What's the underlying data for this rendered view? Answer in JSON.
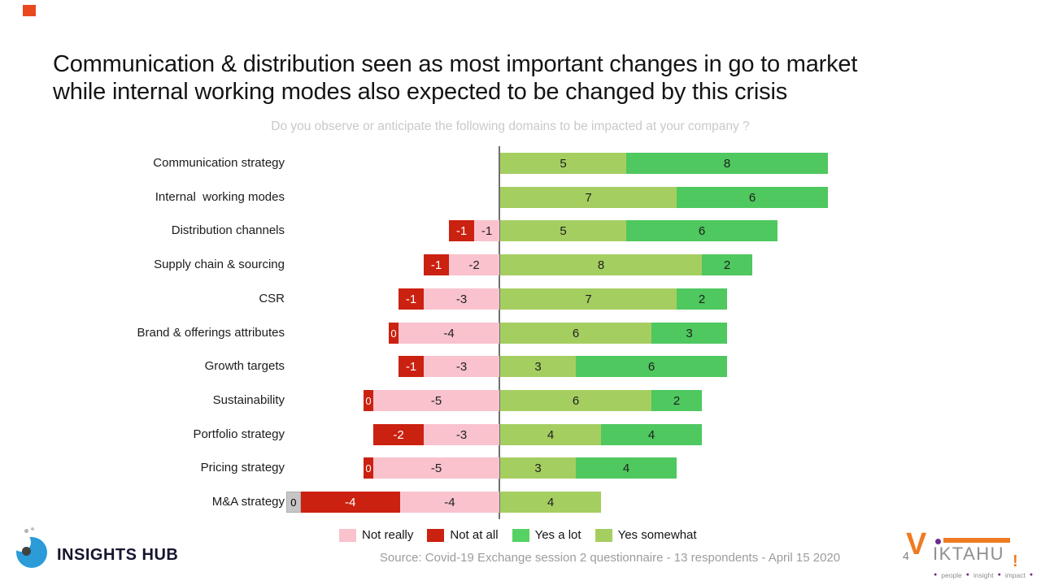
{
  "slide": {
    "title_line1": "Communication & distribution seen as most important changes in go to market",
    "title_line2": "while internal working modes also expected to be changed by this crisis",
    "page_number": "4",
    "top_left_marker_color": "#E8491F"
  },
  "chart_data": {
    "type": "bar",
    "orientation": "horizontal",
    "stacked": true,
    "diverging": true,
    "title": "Do you observe or anticipate the following domains to be impacted at your company ?",
    "source": "Source: Covid-19 Exchange session 2 questionnaire - 13 respondents - April 15 2020",
    "categories": [
      "Communication strategy",
      "Internal  working modes",
      "Distribution channels",
      "Supply chain & sourcing",
      "CSR",
      "Brand & offerings attributes",
      "Growth targets",
      "Sustainability",
      "Portfolio strategy",
      "Pricing strategy",
      "M&A strategy"
    ],
    "series": [
      {
        "name": "Not at all",
        "color": "#CB2110",
        "text_color": "#FFFFFF",
        "values": [
          null,
          null,
          -1,
          -1,
          -1,
          0,
          -1,
          0,
          -2,
          0,
          -4
        ]
      },
      {
        "name": "Not really",
        "color": "#F9C2CD",
        "text_color": "#1F1F1F",
        "values": [
          null,
          null,
          -1,
          -2,
          -3,
          -4,
          -3,
          -5,
          -3,
          -5,
          -4
        ]
      },
      {
        "name": "Yes somewhat",
        "color": "#A5CE61",
        "text_color": "#1F1F1F",
        "values": [
          5,
          7,
          5,
          8,
          7,
          6,
          3,
          6,
          4,
          3,
          4
        ]
      },
      {
        "name": "Yes a lot",
        "color": "#4EC85F",
        "text_color": "#1F1F1F",
        "values": [
          8,
          6,
          6,
          2,
          2,
          3,
          6,
          2,
          4,
          4,
          0
        ]
      }
    ],
    "zero_label_styles": [
      null,
      null,
      null,
      null,
      null,
      "red",
      null,
      "red",
      null,
      "red",
      "gray"
    ],
    "legend": [
      {
        "label": "Not really",
        "color": "#F9C2CD"
      },
      {
        "label": "Not at all",
        "color": "#CB2110"
      },
      {
        "label": "Yes a lot",
        "color": "#55D263"
      },
      {
        "label": "Yes somewhat",
        "color": "#A5CE61"
      }
    ],
    "x_axis": {
      "line_visible": true,
      "tick_labels_visible": false
    }
  },
  "logos": {
    "insights_hub": {
      "text": "INSIGHTS HUB",
      "circle_color": "#2B9CD8"
    },
    "viktahu": {
      "v": "V",
      "rest": "IKTAHU",
      "exclamation": "!",
      "tagline_words": [
        "people",
        "insight",
        "impact"
      ],
      "orange": "#EE7B22",
      "purple": "#6C2D91"
    }
  }
}
